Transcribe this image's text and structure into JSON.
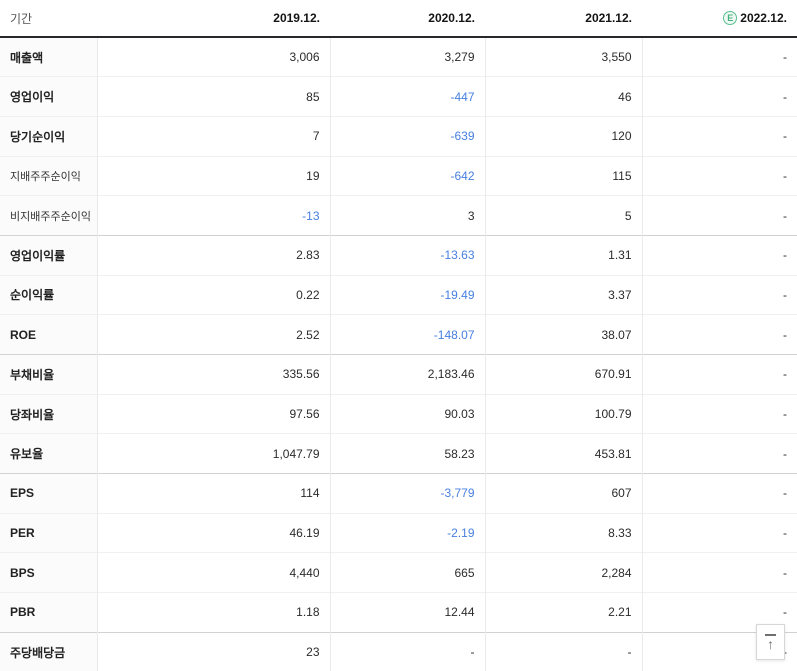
{
  "colors": {
    "negative_value": "#477fe0",
    "estimate_badge_green": "#45b081",
    "header_border_dark": "#26282c"
  },
  "header": {
    "period_label": "기간",
    "columns": [
      "2019.12.",
      "2020.12.",
      "2021.12.",
      "2022.12."
    ],
    "estimate_badge": "E"
  },
  "table": {
    "rows": [
      {
        "label": "매출액",
        "sub": false,
        "group_start": false,
        "values": [
          "3,006",
          "3,279",
          "3,550",
          "-"
        ]
      },
      {
        "label": "영업이익",
        "sub": false,
        "group_start": false,
        "values": [
          "85",
          "-447",
          "46",
          "-"
        ]
      },
      {
        "label": "당기순이익",
        "sub": false,
        "group_start": false,
        "values": [
          "7",
          "-639",
          "120",
          "-"
        ]
      },
      {
        "label": "지배주주순이익",
        "sub": true,
        "group_start": false,
        "values": [
          "19",
          "-642",
          "115",
          "-"
        ]
      },
      {
        "label": "비지배주주순이익",
        "sub": true,
        "group_start": false,
        "values": [
          "-13",
          "3",
          "5",
          "-"
        ]
      },
      {
        "label": "영업이익률",
        "sub": false,
        "group_start": true,
        "values": [
          "2.83",
          "-13.63",
          "1.31",
          "-"
        ]
      },
      {
        "label": "순이익률",
        "sub": false,
        "group_start": false,
        "values": [
          "0.22",
          "-19.49",
          "3.37",
          "-"
        ]
      },
      {
        "label": "ROE",
        "sub": false,
        "group_start": false,
        "values": [
          "2.52",
          "-148.07",
          "38.07",
          "-"
        ]
      },
      {
        "label": "부채비율",
        "sub": false,
        "group_start": true,
        "values": [
          "335.56",
          "2,183.46",
          "670.91",
          "-"
        ]
      },
      {
        "label": "당좌비율",
        "sub": false,
        "group_start": false,
        "values": [
          "97.56",
          "90.03",
          "100.79",
          "-"
        ]
      },
      {
        "label": "유보율",
        "sub": false,
        "group_start": false,
        "values": [
          "1,047.79",
          "58.23",
          "453.81",
          "-"
        ]
      },
      {
        "label": "EPS",
        "sub": false,
        "group_start": true,
        "values": [
          "114",
          "-3,779",
          "607",
          "-"
        ]
      },
      {
        "label": "PER",
        "sub": false,
        "group_start": false,
        "values": [
          "46.19",
          "-2.19",
          "8.33",
          "-"
        ]
      },
      {
        "label": "BPS",
        "sub": false,
        "group_start": false,
        "values": [
          "4,440",
          "665",
          "2,284",
          "-"
        ]
      },
      {
        "label": "PBR",
        "sub": false,
        "group_start": false,
        "values": [
          "1.18",
          "12.44",
          "2.21",
          "-"
        ]
      },
      {
        "label": "주당배당금",
        "sub": false,
        "group_start": true,
        "values": [
          "23",
          "-",
          "-",
          "-"
        ]
      }
    ]
  },
  "scroll_top": {
    "icon": "↑"
  }
}
